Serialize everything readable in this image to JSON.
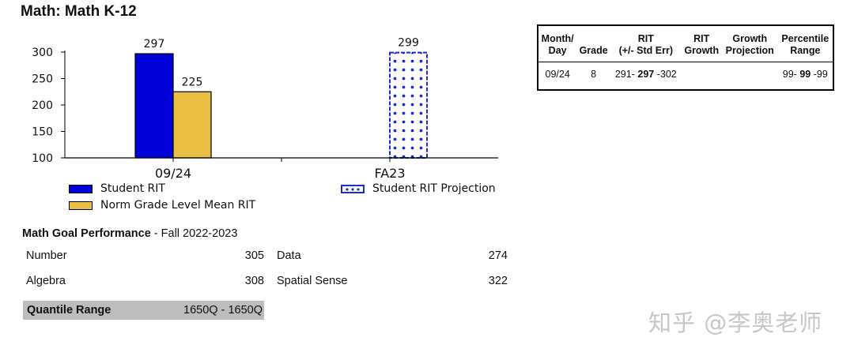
{
  "header": {
    "title": "Math: Math K-12"
  },
  "chart_data": {
    "type": "bar",
    "categories": [
      "09/24",
      "FA23"
    ],
    "series": [
      {
        "name": "Student RIT",
        "values": [
          297,
          null
        ],
        "color": "#0000d8",
        "pattern": "solid"
      },
      {
        "name": "Norm Grade Level Mean RIT",
        "values": [
          225,
          null
        ],
        "color": "#e9bf43",
        "pattern": "solid"
      },
      {
        "name": "Student RIT Projection",
        "values": [
          null,
          299
        ],
        "color": "#1a2bd8",
        "pattern": "dotted"
      }
    ],
    "data_labels": [
      "297",
      "225",
      "299"
    ],
    "y_ticks": [
      "300",
      "250",
      "200",
      "150",
      "100"
    ],
    "ylim": [
      100,
      300
    ],
    "xlabel": "",
    "ylabel": "",
    "grid": false,
    "legend_position": "bottom"
  },
  "legend": {
    "student_rit": "Student RIT",
    "norm_mean": "Norm Grade Level Mean RIT",
    "projection": "Student RIT Projection"
  },
  "rit_table": {
    "headers": {
      "month_day_1": "Month/",
      "month_day_2": "Day",
      "grade": "Grade",
      "rit_1": "RIT",
      "rit_2": "(+/- Std Err)",
      "rit_growth_1": "RIT",
      "rit_growth_2": "Growth",
      "growth_proj_1": "Growth",
      "growth_proj_2": "Projection",
      "percentile_1": "Percentile",
      "percentile_2": "Range"
    },
    "row": {
      "month_day": "09/24",
      "grade": "8",
      "rit_low": "291-",
      "rit_mid": "297",
      "rit_high": "-302",
      "rit_growth": "",
      "growth_projection": "",
      "pct_low": "99-",
      "pct_mid": "99",
      "pct_high": "-99"
    }
  },
  "goal_performance": {
    "title": "Math Goal Performance",
    "term": " - Fall 2022-2023",
    "goals": [
      {
        "name": "Number",
        "value": "305"
      },
      {
        "name": "Data",
        "value": "274"
      },
      {
        "name": "Algebra",
        "value": "308"
      },
      {
        "name": "Spatial Sense",
        "value": "322"
      }
    ]
  },
  "quantile": {
    "label": "Quantile Range",
    "value": "1650Q - 1650Q"
  },
  "watermark": {
    "text": "知乎 @李奥老师"
  }
}
